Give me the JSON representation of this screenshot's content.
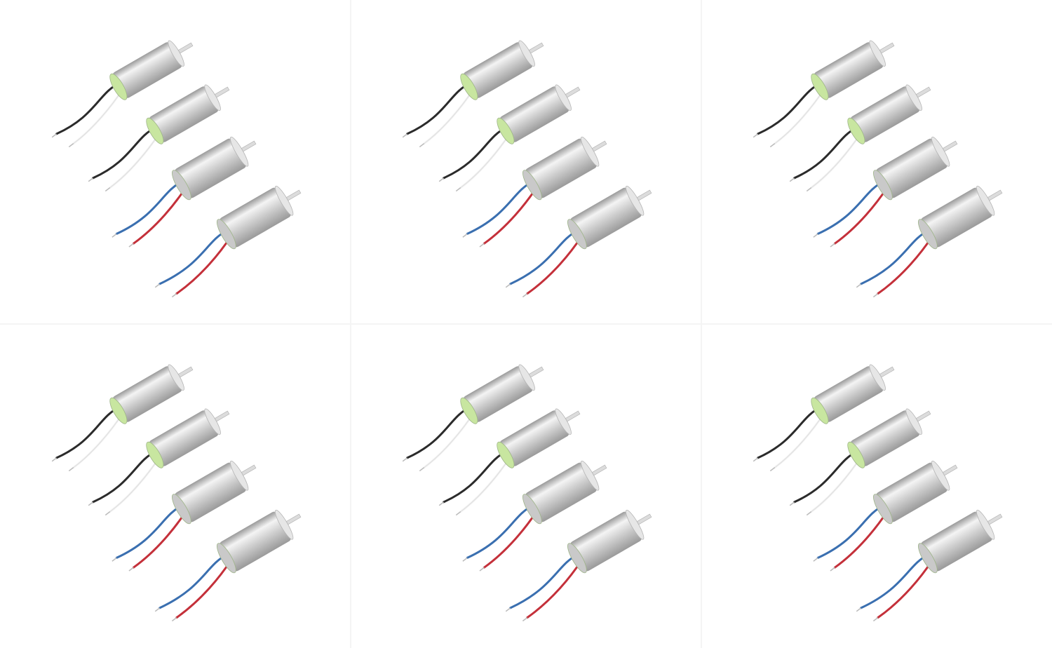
{
  "image": {
    "layout": {
      "rows": 2,
      "columns": 3
    },
    "panel_count": 6,
    "subject": "coreless-motor-set",
    "motors_per_panel": 4,
    "motors": [
      {
        "name": "motor-1",
        "cap_color": "#c8e6a0",
        "wire_a_color": "#2b2b2b",
        "wire_b_color": "#f2f2f2"
      },
      {
        "name": "motor-2",
        "cap_color": "#c8e6a0",
        "wire_a_color": "#2b2b2b",
        "wire_b_color": "#f2f2f2"
      },
      {
        "name": "motor-3",
        "cap_color": "#c9c9c9",
        "wire_a_color": "#3a6fb0",
        "wire_b_color": "#c4303a"
      },
      {
        "name": "motor-4",
        "cap_color": "#c9c9c9",
        "wire_a_color": "#3a6fb0",
        "wire_b_color": "#c4303a"
      }
    ],
    "colors": {
      "background": "#ffffff",
      "body_light": "#f4f4f4",
      "body_mid": "#cfcfcf",
      "body_dark": "#9a9a9a",
      "shaft": "#dcdcdc"
    }
  }
}
